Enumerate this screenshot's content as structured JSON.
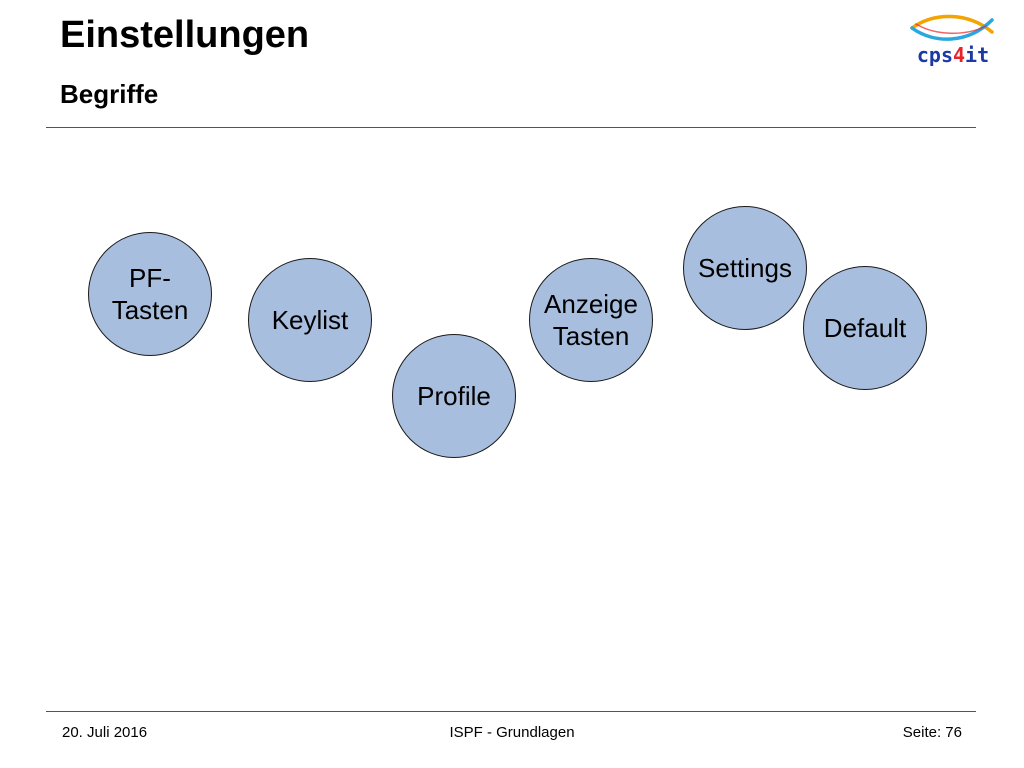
{
  "header": {
    "title": "Einstellungen",
    "subtitle": "Begriffe",
    "logo": {
      "name": "cps4it-logo",
      "colors": {
        "text": "#1c39a4",
        "accent": "#e8232a",
        "arc_warm": "#f4a400",
        "arc_cool": "#2aa7df"
      }
    }
  },
  "concepts": [
    {
      "id": "pf-tasten",
      "label": "PF-\nTasten"
    },
    {
      "id": "keylist",
      "label": "Keylist"
    },
    {
      "id": "profile",
      "label": "Profile"
    },
    {
      "id": "anzeige-tasten",
      "label": "Anzeige\nTasten"
    },
    {
      "id": "settings",
      "label": "Settings"
    },
    {
      "id": "default",
      "label": "Default"
    }
  ],
  "style": {
    "bubble_fill": "#a8bedf",
    "bubble_border": "#1a1a1a",
    "rule_color": "#555555"
  },
  "footer": {
    "date": "20. Juli 2016",
    "center": "ISPF - Grundlagen",
    "page": "Seite: 76"
  }
}
